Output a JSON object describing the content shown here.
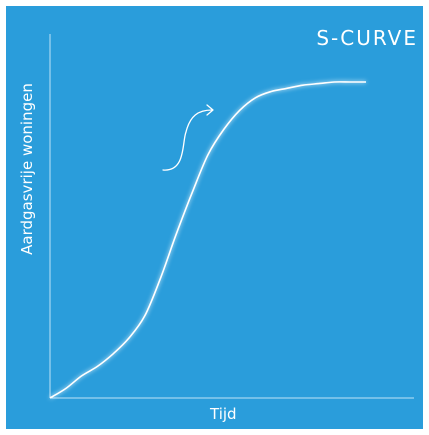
{
  "chart_data": {
    "type": "line",
    "title": "S-CURVE",
    "xlabel": "Tijd",
    "ylabel": "Aardgasvrije woningen",
    "grid": false,
    "legend": "none",
    "series": [
      {
        "x": [
          0,
          5,
          10,
          15,
          20,
          25,
          30,
          35,
          40,
          45,
          50,
          55,
          60,
          65,
          70,
          75,
          80,
          85,
          90,
          95,
          100
        ],
        "values": [
          0,
          3,
          7,
          10,
          14,
          19,
          26,
          38,
          52,
          65,
          77,
          85,
          91,
          95,
          97,
          98,
          99,
          99.5,
          100,
          100,
          100
        ]
      }
    ],
    "xlim": [
      0,
      100
    ],
    "ylim": [
      0,
      100
    ]
  },
  "colors": {
    "background": "#2a9ddb",
    "line": "#ffffff",
    "axis": "#bfe3f7"
  },
  "decoration": {
    "icon": "s-curve-arrow-icon",
    "signature": "signature"
  }
}
